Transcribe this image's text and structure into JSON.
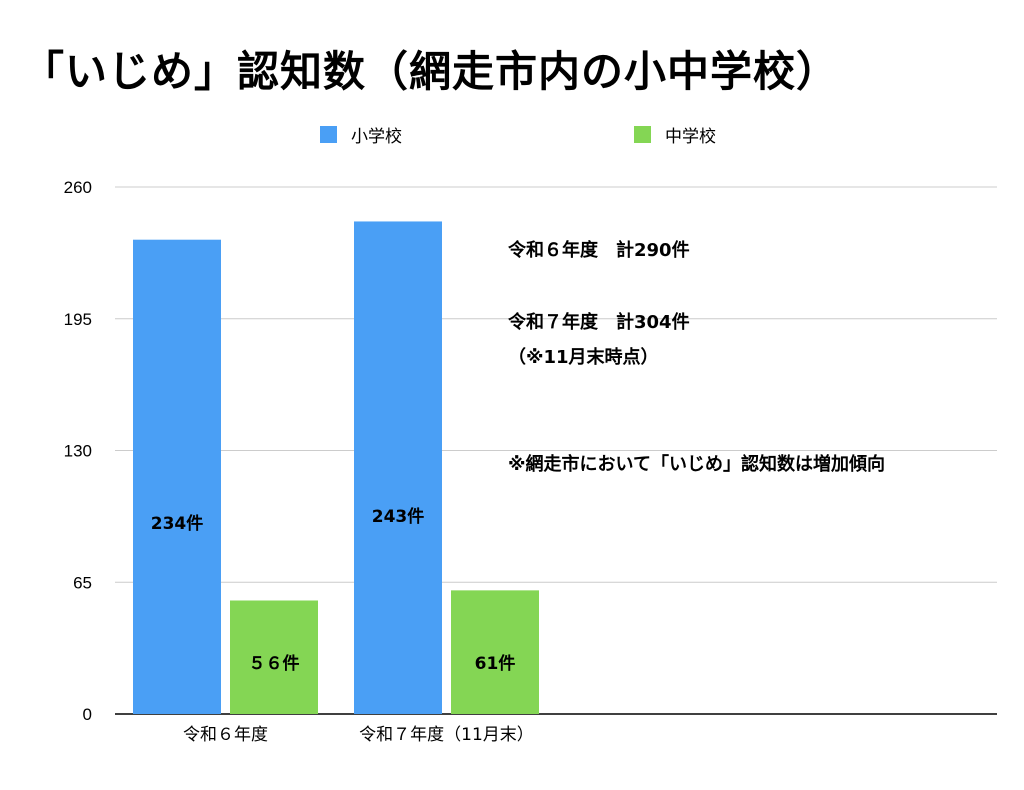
{
  "chart_data": {
    "type": "bar",
    "title": "「いじめ」認知数（網走市内の小中学校）",
    "categories": [
      "令和６年度",
      "令和７年度（11月末）"
    ],
    "series": [
      {
        "name": "小学校",
        "values": [
          234,
          243
        ],
        "labels": [
          "234件",
          "243件"
        ],
        "color": "#4a9ff5"
      },
      {
        "name": "中学校",
        "values": [
          56,
          61
        ],
        "labels": [
          "５６件",
          "61件"
        ],
        "color": "#84d654"
      }
    ],
    "ylim": [
      0,
      260
    ],
    "yticks": [
      "0",
      "65",
      "130",
      "195",
      "260"
    ],
    "grid": true,
    "legend": "top",
    "xlabel": "",
    "ylabel": "",
    "annotations": [
      "令和６年度　計290件",
      "令和７年度　計304件",
      "（※11月末時点）",
      "※網走市において「いじめ」認知数は増加傾向"
    ]
  }
}
